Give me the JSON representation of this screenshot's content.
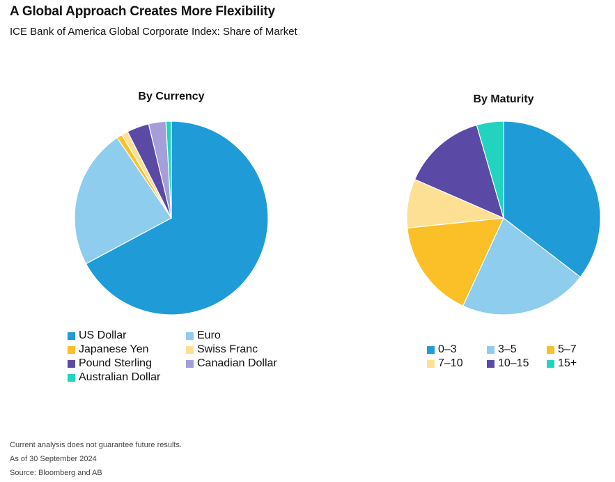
{
  "header": {
    "title": "A Global Approach Creates More Flexibility",
    "subtitle": "ICE Bank of America Global Corporate Index: Share of Market"
  },
  "chart_data": [
    {
      "type": "pie",
      "title": "By Currency",
      "labels": [
        "US Dollar",
        "Euro",
        "Japanese Yen",
        "Swiss Franc",
        "Pound Sterling",
        "Canadian Dollar",
        "Australian Dollar"
      ],
      "values": [
        67.5,
        23.5,
        0.9,
        1.1,
        3.7,
        2.9,
        0.9
      ],
      "colors": [
        "#1f9bd7",
        "#8ecdee",
        "#fbbf28",
        "#fde094",
        "#5a4aa6",
        "#a59ed8",
        "#22d3c0"
      ],
      "start_angle_deg": 0,
      "direction": "clockwise",
      "legend_position": "bottom",
      "legend_columns": 2
    },
    {
      "type": "pie",
      "title": "By Maturity",
      "labels": [
        "0–3",
        "3–5",
        "5–7",
        "7–10",
        "10–15",
        "15+"
      ],
      "values": [
        35.5,
        21.5,
        16.5,
        8.2,
        14.0,
        4.5
      ],
      "colors": [
        "#1f9bd7",
        "#8ecdee",
        "#fbbf28",
        "#fde094",
        "#5a4aa6",
        "#22d3c0"
      ],
      "start_angle_deg": 0,
      "direction": "clockwise",
      "legend_position": "bottom",
      "legend_columns": 3
    }
  ],
  "footnotes": {
    "line1": "Current analysis does not guarantee future results.",
    "line2": "As of 30 September 2024",
    "line3": "Source: Bloomberg and AB"
  }
}
